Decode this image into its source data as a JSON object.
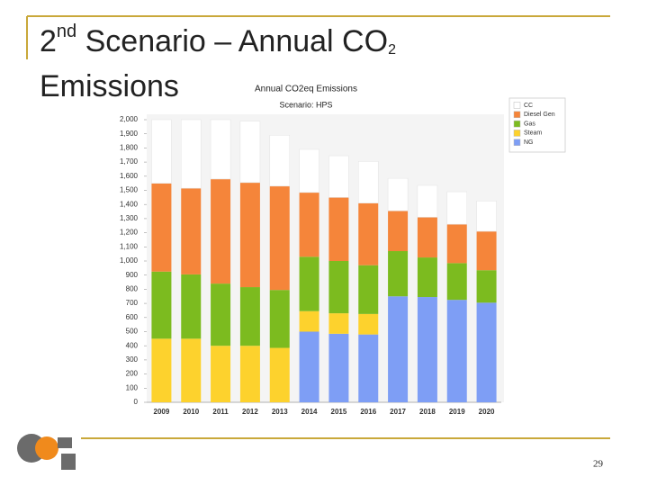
{
  "slide": {
    "title_parts": [
      "2",
      "nd",
      " Scenario – Annual CO",
      "2"
    ],
    "title_line2": "Emissions",
    "page_number": "29"
  },
  "chart_data": {
    "type": "stacked_bar",
    "title": "Annual CO2eq Emissions",
    "subtitle": "Scenario: HPS",
    "categories": [
      "2009",
      "2010",
      "2011",
      "2012",
      "2013",
      "2014",
      "2015",
      "2016",
      "2017",
      "2018",
      "2019",
      "2020"
    ],
    "series": [
      {
        "name": "NG",
        "color": "#7e9ef5",
        "values": [
          0,
          0,
          0,
          0,
          0,
          500,
          485,
          480,
          750,
          745,
          725,
          705
        ]
      },
      {
        "name": "Steam",
        "color": "#fdd22d",
        "values": [
          450,
          450,
          400,
          400,
          385,
          145,
          145,
          145,
          0,
          0,
          0,
          0
        ]
      },
      {
        "name": "Gas",
        "color": "#7cbb1f",
        "values": [
          475,
          455,
          440,
          415,
          410,
          385,
          370,
          345,
          320,
          280,
          260,
          230
        ]
      },
      {
        "name": "Diesel Gen",
        "color": "#f5853a",
        "values": [
          625,
          610,
          740,
          740,
          735,
          455,
          450,
          440,
          285,
          285,
          275,
          275
        ]
      },
      {
        "name": "CC",
        "color": "#ffffff",
        "values": [
          450,
          485,
          420,
          435,
          360,
          305,
          295,
          295,
          230,
          225,
          230,
          215
        ]
      }
    ],
    "ylim": [
      0,
      2000
    ],
    "yticks": [
      0,
      100,
      200,
      300,
      400,
      500,
      600,
      700,
      800,
      900,
      {
        "value": 1000,
        "label": "1,000"
      },
      {
        "value": 1100,
        "label": "1,100"
      },
      {
        "value": 1200,
        "label": "1,200"
      },
      {
        "value": 1300,
        "label": "1,300"
      },
      {
        "value": 1400,
        "label": "1,400"
      },
      {
        "value": 1500,
        "label": "1,500"
      },
      {
        "value": 1600,
        "label": "1,600"
      },
      {
        "value": 1700,
        "label": "1,700"
      },
      {
        "value": 1800,
        "label": "1,800"
      },
      {
        "value": 1900,
        "label": "1,900"
      },
      {
        "value": 2000,
        "label": "2,000"
      }
    ],
    "grid": false,
    "legend": "top-right"
  }
}
